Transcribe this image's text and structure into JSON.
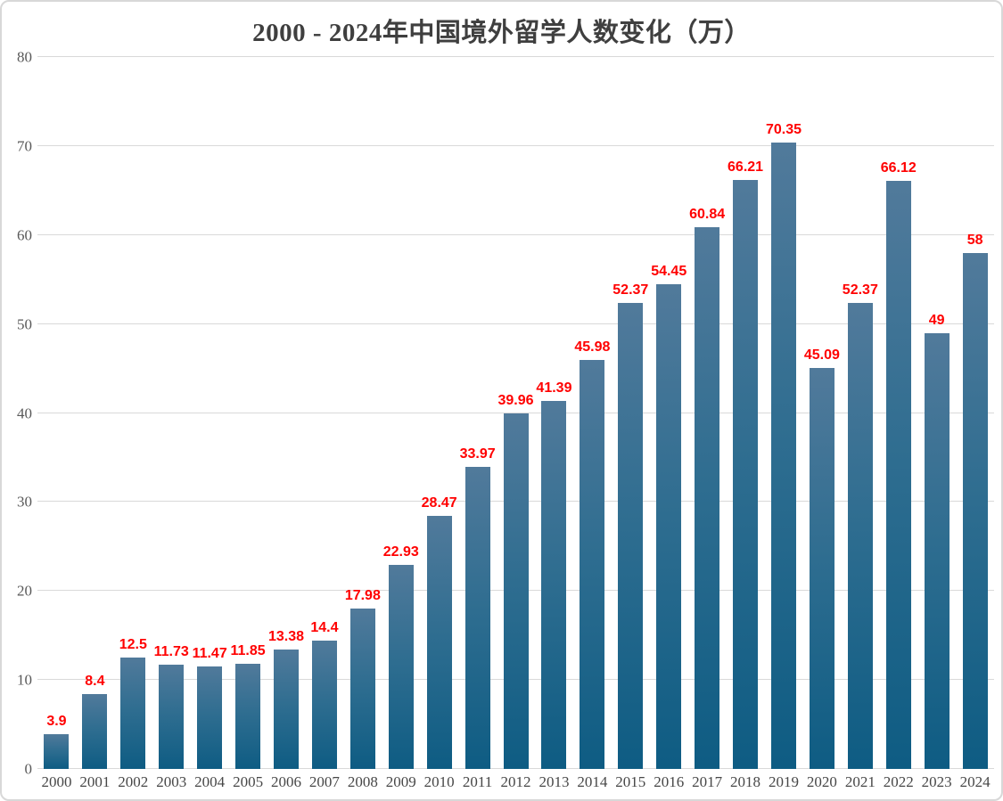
{
  "chart_data": {
    "type": "bar",
    "title": "2000 - 2024年中国境外留学人数变化（万）",
    "categories": [
      "2000",
      "2001",
      "2002",
      "2003",
      "2004",
      "2005",
      "2006",
      "2007",
      "2008",
      "2009",
      "2010",
      "2011",
      "2012",
      "2013",
      "2014",
      "2015",
      "2016",
      "2017",
      "2018",
      "2019",
      "2020",
      "2021",
      "2022",
      "2023",
      "2024"
    ],
    "values": [
      3.9,
      8.4,
      12.5,
      11.73,
      11.47,
      11.85,
      13.38,
      14.4,
      17.98,
      22.93,
      28.47,
      33.97,
      39.96,
      41.39,
      45.98,
      52.37,
      54.45,
      60.84,
      66.21,
      70.35,
      45.09,
      52.37,
      66.12,
      49,
      58
    ],
    "data_labels": [
      "3.9",
      "8.4",
      "12.5",
      "11.73",
      "11.47",
      "11.85",
      "13.38",
      "14.4",
      "17.98",
      "22.93",
      "28.47",
      "33.97",
      "39.96",
      "41.39",
      "45.98",
      "52.37",
      "54.45",
      "60.84",
      "66.21",
      "70.35",
      "45.09",
      "52.37",
      "66.12",
      "49",
      "58"
    ],
    "xlabel": "",
    "ylabel": "",
    "ylim": [
      0,
      80
    ],
    "yticks": [
      0,
      10,
      20,
      30,
      40,
      50,
      60,
      70,
      80
    ],
    "grid": true,
    "legend": null,
    "colors": {
      "bar_gradient_top": "#517a9b",
      "bar_gradient_mid": "#2e6d90",
      "bar_gradient_bottom": "#0e5c83",
      "data_label": "#ff0000",
      "gridline": "#d9d9d9",
      "axis_text": "#595959",
      "title_text": "#3f3f3f",
      "frame_border": "#d8d8d8",
      "background": "#ffffff"
    }
  }
}
